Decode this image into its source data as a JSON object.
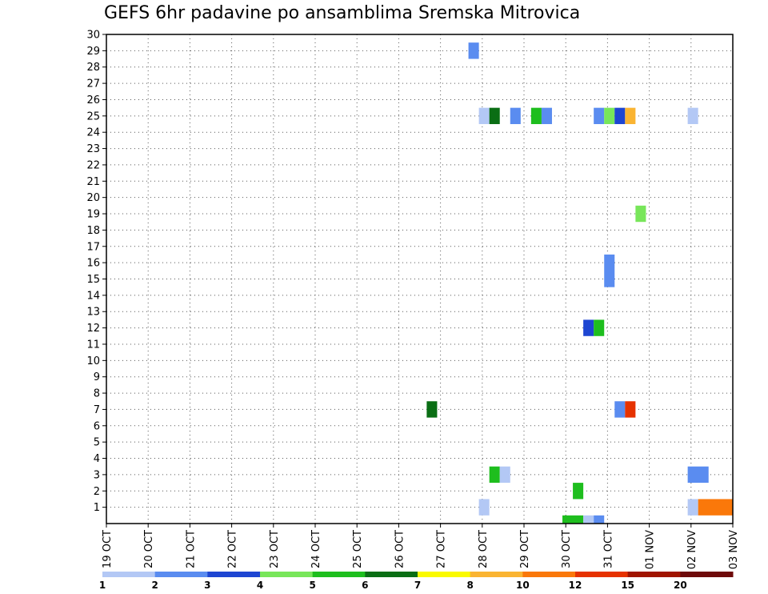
{
  "chart_data": {
    "type": "heatmap",
    "title": "GEFS 6hr padavine po ansamblima Sremska Mitrovica",
    "x_tick_labels": [
      "19 OCT",
      "20 OCT",
      "21 OCT",
      "22 OCT",
      "23 OCT",
      "24 OCT",
      "25 OCT",
      "26 OCT",
      "27 OCT",
      "28 OCT",
      "29 OCT",
      "30 OCT",
      "31 OCT",
      "01 NOV",
      "02 NOV",
      "03 NOV"
    ],
    "x_range_days": [
      0,
      15
    ],
    "y_range": [
      0,
      30
    ],
    "y_tick_labels": [
      "1",
      "2",
      "3",
      "4",
      "5",
      "6",
      "7",
      "8",
      "9",
      "10",
      "11",
      "12",
      "13",
      "14",
      "15",
      "16",
      "17",
      "18",
      "19",
      "20",
      "21",
      "22",
      "23",
      "24",
      "25",
      "26",
      "27",
      "28",
      "29",
      "30"
    ],
    "grid": "dotted",
    "colorbar": {
      "colors": [
        "#b3c8f5",
        "#5a8cf0",
        "#1e46d2",
        "#78e65a",
        "#1ebe1e",
        "#0a6e14",
        "#fafa00",
        "#fab432",
        "#fa780a",
        "#e63200",
        "#a01400",
        "#6e0a0a"
      ],
      "labels": [
        "1",
        "2",
        "3",
        "4",
        "5",
        "6",
        "7",
        "8",
        "10",
        "12",
        "15",
        "20"
      ]
    },
    "cells": [
      {
        "x0": 8.67,
        "x1": 8.92,
        "y0": 28.5,
        "y1": 29.5,
        "level": 2
      },
      {
        "x0": 8.92,
        "x1": 9.17,
        "y0": 24.5,
        "y1": 25.5,
        "level": 1
      },
      {
        "x0": 9.17,
        "x1": 9.42,
        "y0": 24.5,
        "y1": 25.5,
        "level": 6
      },
      {
        "x0": 9.67,
        "x1": 9.92,
        "y0": 24.5,
        "y1": 25.5,
        "level": 2
      },
      {
        "x0": 10.17,
        "x1": 10.42,
        "y0": 24.5,
        "y1": 25.5,
        "level": 5
      },
      {
        "x0": 10.42,
        "x1": 10.67,
        "y0": 24.5,
        "y1": 25.5,
        "level": 2
      },
      {
        "x0": 11.67,
        "x1": 11.92,
        "y0": 24.5,
        "y1": 25.5,
        "level": 2
      },
      {
        "x0": 11.92,
        "x1": 12.17,
        "y0": 24.5,
        "y1": 25.5,
        "level": 4
      },
      {
        "x0": 12.17,
        "x1": 12.42,
        "y0": 24.5,
        "y1": 25.5,
        "level": 3
      },
      {
        "x0": 12.42,
        "x1": 12.67,
        "y0": 24.5,
        "y1": 25.5,
        "level": 8
      },
      {
        "x0": 13.92,
        "x1": 14.17,
        "y0": 24.5,
        "y1": 25.5,
        "level": 1
      },
      {
        "x0": 12.67,
        "x1": 12.92,
        "y0": 18.5,
        "y1": 19.5,
        "level": 4
      },
      {
        "x0": 11.92,
        "x1": 12.17,
        "y0": 14.5,
        "y1": 16.5,
        "level": 2
      },
      {
        "x0": 11.42,
        "x1": 11.67,
        "y0": 11.5,
        "y1": 12.5,
        "level": 3
      },
      {
        "x0": 11.67,
        "x1": 11.92,
        "y0": 11.5,
        "y1": 12.5,
        "level": 5
      },
      {
        "x0": 7.67,
        "x1": 7.92,
        "y0": 6.5,
        "y1": 7.5,
        "level": 6
      },
      {
        "x0": 12.17,
        "x1": 12.42,
        "y0": 6.5,
        "y1": 7.5,
        "level": 2
      },
      {
        "x0": 12.42,
        "x1": 12.67,
        "y0": 6.5,
        "y1": 7.5,
        "level": 10
      },
      {
        "x0": 9.17,
        "x1": 9.42,
        "y0": 2.5,
        "y1": 3.5,
        "level": 5
      },
      {
        "x0": 9.42,
        "x1": 9.67,
        "y0": 2.5,
        "y1": 3.5,
        "level": 1
      },
      {
        "x0": 13.92,
        "x1": 14.42,
        "y0": 2.5,
        "y1": 3.5,
        "level": 2
      },
      {
        "x0": 11.17,
        "x1": 11.42,
        "y0": 1.5,
        "y1": 2.5,
        "level": 5
      },
      {
        "x0": 8.92,
        "x1": 9.17,
        "y0": 0.5,
        "y1": 1.5,
        "level": 1
      },
      {
        "x0": 13.92,
        "x1": 14.17,
        "y0": 0.5,
        "y1": 1.5,
        "level": 1
      },
      {
        "x0": 14.17,
        "x1": 15.0,
        "y0": 0.5,
        "y1": 1.5,
        "level": 9
      },
      {
        "x0": 10.92,
        "x1": 11.42,
        "y0": 0,
        "y1": 0.5,
        "level": 5
      },
      {
        "x0": 11.42,
        "x1": 11.67,
        "y0": 0,
        "y1": 0.5,
        "level": 1
      },
      {
        "x0": 11.67,
        "x1": 11.92,
        "y0": 0,
        "y1": 0.5,
        "level": 2
      }
    ]
  }
}
